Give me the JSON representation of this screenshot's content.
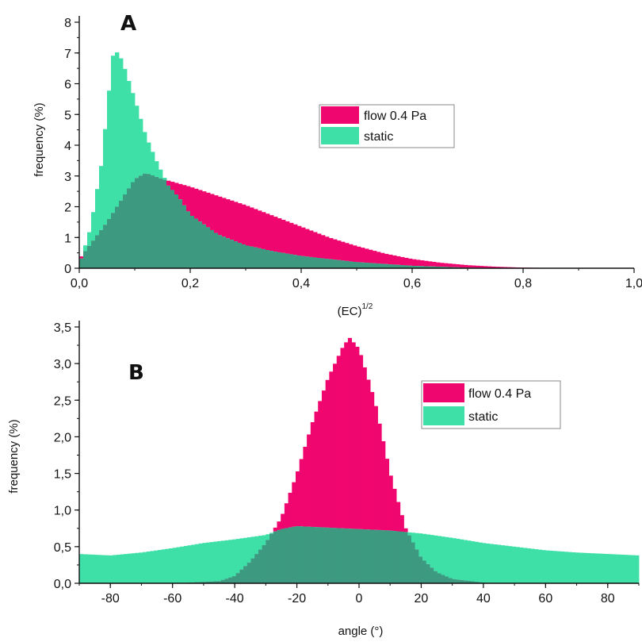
{
  "colors": {
    "flow": "#f0066f",
    "static": "#3ee0a8",
    "overlap": "#3d9a80",
    "axis": "#111111"
  },
  "chart_data": [
    {
      "type": "bar",
      "panel_label": "A",
      "xlabel": "(EC)",
      "xlabel_superscript": "1/2",
      "ylabel": "frequency (%)",
      "xlim": [
        0.0,
        1.0
      ],
      "ylim": [
        0,
        8
      ],
      "x_ticks": [
        "0,0",
        "0,2",
        "0,4",
        "0,6",
        "0,8",
        "1,0"
      ],
      "y_ticks": [
        "0",
        "1",
        "2",
        "3",
        "4",
        "5",
        "6",
        "7",
        "8"
      ],
      "grid": false,
      "legend_position": "center-right",
      "series": [
        {
          "name": "flow 0.4 Pa",
          "x": [
            0.0,
            0.05,
            0.1,
            0.12,
            0.15,
            0.2,
            0.25,
            0.3,
            0.35,
            0.4,
            0.45,
            0.5,
            0.55,
            0.6,
            0.65,
            0.7,
            0.75,
            0.8,
            0.85,
            0.9,
            0.95,
            1.0
          ],
          "values": [
            0.3,
            1.5,
            2.9,
            3.1,
            2.9,
            2.65,
            2.35,
            2.05,
            1.7,
            1.35,
            1.0,
            0.72,
            0.48,
            0.3,
            0.18,
            0.1,
            0.05,
            0.02,
            0.01,
            0.005,
            0.0,
            0.0
          ]
        },
        {
          "name": "static",
          "x": [
            0.0,
            0.02,
            0.04,
            0.06,
            0.07,
            0.08,
            0.1,
            0.12,
            0.14,
            0.16,
            0.18,
            0.2,
            0.25,
            0.3,
            0.35,
            0.4,
            0.5,
            0.6,
            0.7,
            0.8
          ],
          "values": [
            0.1,
            1.3,
            3.4,
            6.9,
            7.05,
            6.6,
            5.5,
            4.3,
            3.45,
            2.7,
            2.3,
            1.75,
            1.1,
            0.75,
            0.55,
            0.4,
            0.2,
            0.08,
            0.02,
            0.0
          ]
        }
      ]
    },
    {
      "type": "bar",
      "panel_label": "B",
      "xlabel": "angle (°)",
      "ylabel": "frequency (%)",
      "xlim": [
        -90,
        90
      ],
      "ylim": [
        0,
        3.5
      ],
      "x_ticks": [
        "-80",
        "-60",
        "-40",
        "-20",
        "0",
        "20",
        "40",
        "60",
        "80"
      ],
      "y_ticks": [
        "0,0",
        "0,5",
        "1,0",
        "1,5",
        "2,0",
        "2,5",
        "3,0",
        "3,5"
      ],
      "grid": false,
      "legend_position": "top-right",
      "series": [
        {
          "name": "flow 0.4 Pa",
          "x": [
            -90,
            -60,
            -45,
            -40,
            -35,
            -30,
            -25,
            -20,
            -15,
            -10,
            -5,
            -3,
            0,
            5,
            10,
            15,
            20,
            25,
            30,
            40,
            50,
            90
          ],
          "values": [
            0.0,
            0.0,
            0.03,
            0.1,
            0.3,
            0.55,
            0.9,
            1.5,
            2.2,
            2.8,
            3.25,
            3.35,
            3.2,
            2.5,
            1.5,
            0.75,
            0.35,
            0.15,
            0.06,
            0.01,
            0.0,
            0.0
          ]
        },
        {
          "name": "static",
          "x": [
            -90,
            -80,
            -70,
            -60,
            -50,
            -40,
            -30,
            -25,
            -20,
            -10,
            0,
            10,
            15,
            20,
            30,
            40,
            50,
            60,
            70,
            80,
            90
          ],
          "values": [
            0.4,
            0.38,
            0.42,
            0.48,
            0.55,
            0.6,
            0.66,
            0.74,
            0.78,
            0.76,
            0.74,
            0.72,
            0.7,
            0.68,
            0.62,
            0.55,
            0.5,
            0.45,
            0.42,
            0.4,
            0.38
          ]
        }
      ]
    }
  ]
}
